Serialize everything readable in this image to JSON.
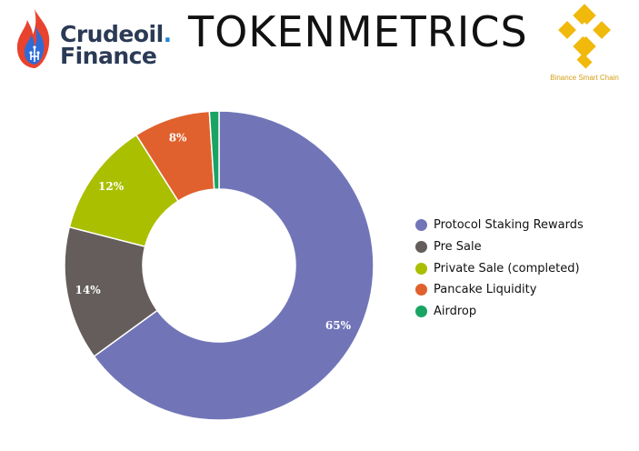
{
  "header": {
    "logo_text_line1": "Crudeoil",
    "logo_text_dot": ".",
    "logo_text_line2": "Finance",
    "title": "TOKENMETRICS",
    "network_label": "Binance Smart Chain"
  },
  "colors": {
    "brand_navy": "#2b3a55",
    "brand_blue": "#1e88d8",
    "binance_gold": "#f0b90b"
  },
  "icons": [
    "crudeoil-flame-logo-icon",
    "binance-logo-icon"
  ],
  "chart_data": {
    "type": "pie",
    "style": "donut",
    "title": "",
    "categories": [
      "Protocol Staking Rewards",
      "Pre Sale",
      "Private Sale (completed)",
      "Pancake Liquidity",
      "Airdrop"
    ],
    "values": [
      65,
      14,
      12,
      8,
      1
    ],
    "data_labels": [
      "65%",
      "14%",
      "12%",
      "8%",
      ""
    ],
    "colors": [
      "#7175b8",
      "#645d5b",
      "#aabf00",
      "#e0612d",
      "#19a463"
    ],
    "legend_position": "right"
  }
}
